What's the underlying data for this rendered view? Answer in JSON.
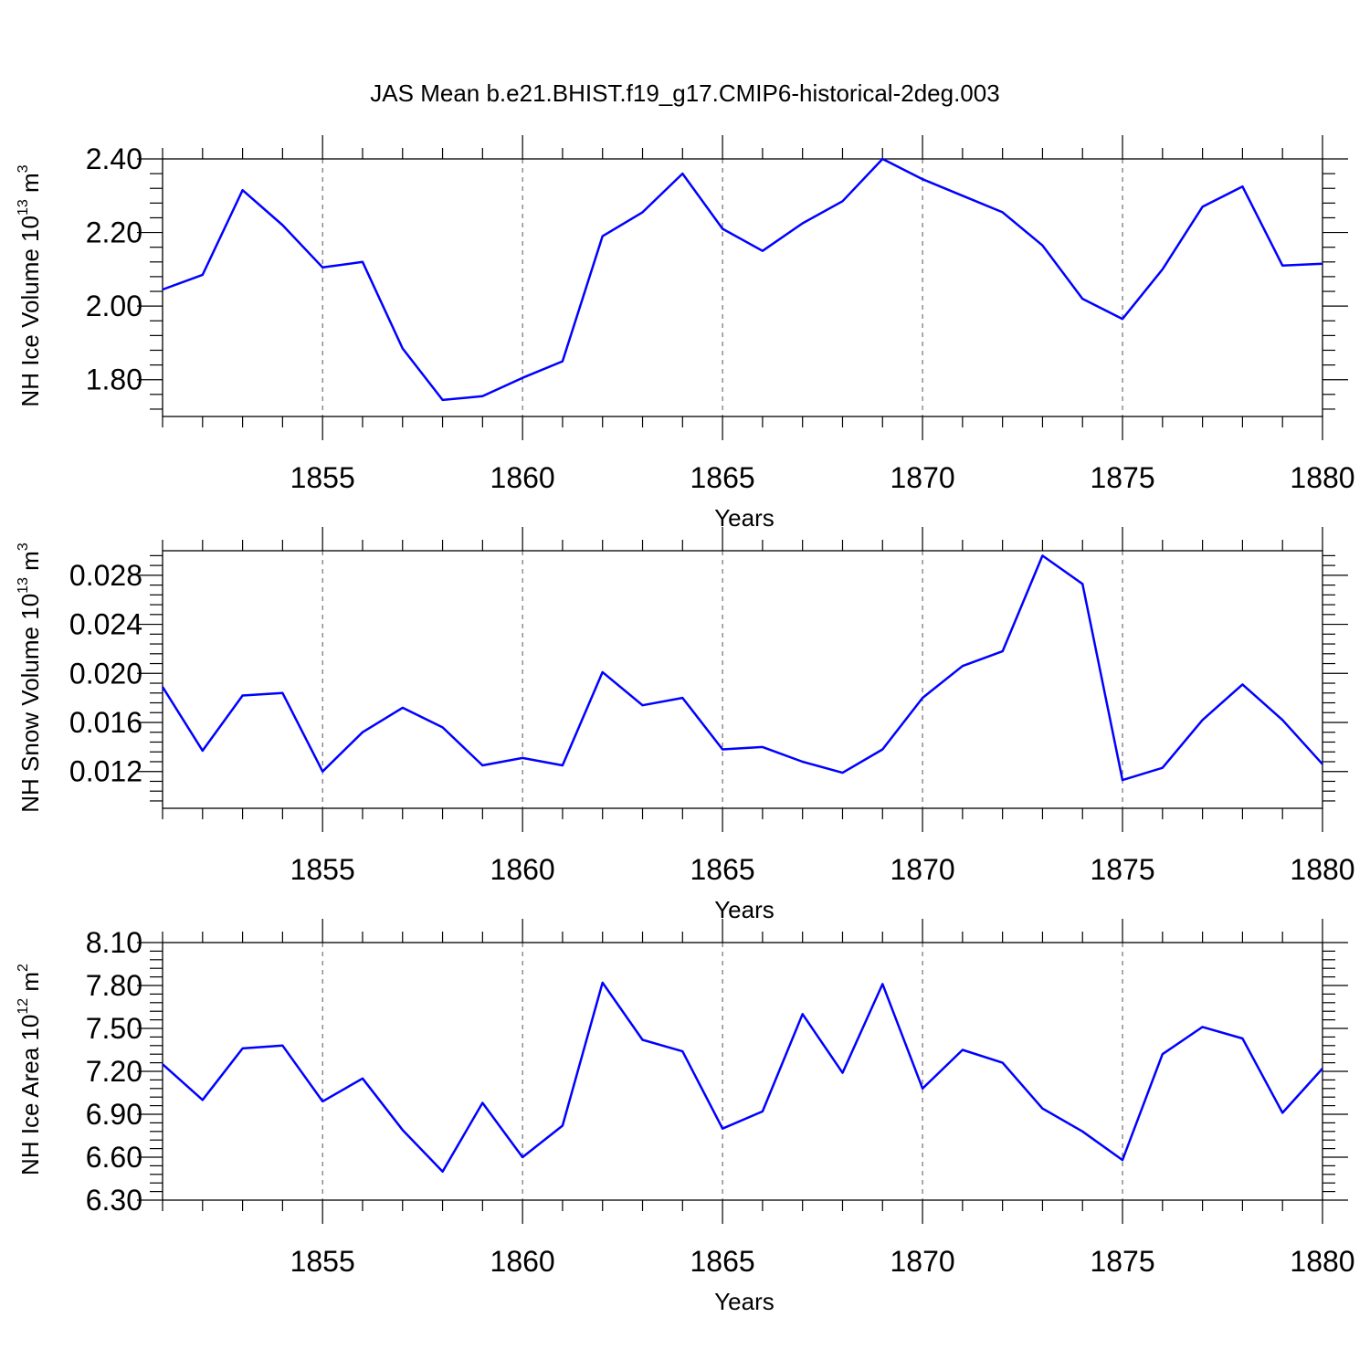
{
  "figure": {
    "title": "JAS Mean b.e21.BHIST.f19_g17.CMIP6-historical-2deg.003"
  },
  "colors": {
    "line": "#0000ff",
    "axis": "#000000",
    "grid": "#555555"
  },
  "chart_data": [
    {
      "type": "line",
      "name": "ice-volume",
      "ylabel": "NH Ice Volume 10",
      "ylabel_exp": "13",
      "ylabel_unit": " m",
      "ylabel_unit_exp": "3",
      "xlabel": "Years",
      "xlim": [
        1851,
        1880
      ],
      "ylim": [
        1.7,
        2.4
      ],
      "yticks": [
        1.8,
        2.0,
        2.2,
        2.4
      ],
      "ytick_labels": [
        "1.80",
        "2.00",
        "2.20",
        "2.40"
      ],
      "xticks": [
        1855,
        1860,
        1865,
        1870,
        1875,
        1880
      ],
      "xtick_labels": [
        "1855",
        "1860",
        "1865",
        "1870",
        "1875",
        "1880"
      ],
      "grid_x": true,
      "x": [
        1851,
        1852,
        1853,
        1854,
        1855,
        1856,
        1857,
        1858,
        1859,
        1860,
        1861,
        1862,
        1863,
        1864,
        1865,
        1866,
        1867,
        1868,
        1869,
        1870,
        1871,
        1872,
        1873,
        1874,
        1875,
        1876,
        1877,
        1878,
        1879,
        1880
      ],
      "y": [
        2.045,
        2.085,
        2.315,
        2.22,
        2.105,
        2.12,
        1.885,
        1.745,
        1.755,
        1.805,
        1.85,
        2.19,
        2.255,
        2.36,
        2.21,
        2.15,
        2.225,
        2.285,
        2.4,
        2.345,
        2.3,
        2.255,
        2.165,
        2.02,
        1.965,
        2.1,
        2.27,
        2.325,
        2.11,
        2.115
      ]
    },
    {
      "type": "line",
      "name": "snow-volume",
      "ylabel": "NH Snow Volume 10",
      "ylabel_exp": "13",
      "ylabel_unit": " m",
      "ylabel_unit_exp": "3",
      "xlabel": "Years",
      "xlim": [
        1851,
        1880
      ],
      "ylim": [
        0.009,
        0.03
      ],
      "yticks": [
        0.012,
        0.016,
        0.02,
        0.024,
        0.028
      ],
      "ytick_labels": [
        "0.012",
        "0.016",
        "0.020",
        "0.024",
        "0.028"
      ],
      "xticks": [
        1855,
        1860,
        1865,
        1870,
        1875,
        1880
      ],
      "xtick_labels": [
        "1855",
        "1860",
        "1865",
        "1870",
        "1875",
        "1880"
      ],
      "grid_x": true,
      "x": [
        1851,
        1852,
        1853,
        1854,
        1855,
        1856,
        1857,
        1858,
        1859,
        1860,
        1861,
        1862,
        1863,
        1864,
        1865,
        1866,
        1867,
        1868,
        1869,
        1870,
        1871,
        1872,
        1873,
        1874,
        1875,
        1876,
        1877,
        1878,
        1879,
        1880
      ],
      "y": [
        0.0189,
        0.0137,
        0.0182,
        0.0184,
        0.012,
        0.0152,
        0.0172,
        0.0156,
        0.0125,
        0.0131,
        0.0125,
        0.0201,
        0.0174,
        0.018,
        0.0138,
        0.014,
        0.0128,
        0.0119,
        0.0138,
        0.018,
        0.0206,
        0.0218,
        0.0296,
        0.0273,
        0.0113,
        0.0123,
        0.0162,
        0.0191,
        0.0162,
        0.0126
      ]
    },
    {
      "type": "line",
      "name": "ice-area",
      "ylabel": "NH Ice Area 10",
      "ylabel_exp": "12",
      "ylabel_unit": " m",
      "ylabel_unit_exp": "2",
      "xlabel": "Years",
      "xlim": [
        1851,
        1880
      ],
      "ylim": [
        6.3,
        8.1
      ],
      "yticks": [
        6.3,
        6.6,
        6.9,
        7.2,
        7.5,
        7.8,
        8.1
      ],
      "ytick_labels": [
        "6.30",
        "6.60",
        "6.90",
        "7.20",
        "7.50",
        "7.80",
        "8.10"
      ],
      "xticks": [
        1855,
        1860,
        1865,
        1870,
        1875,
        1880
      ],
      "xtick_labels": [
        "1855",
        "1860",
        "1865",
        "1870",
        "1875",
        "1880"
      ],
      "grid_x": true,
      "x": [
        1851,
        1852,
        1853,
        1854,
        1855,
        1856,
        1857,
        1858,
        1859,
        1860,
        1861,
        1862,
        1863,
        1864,
        1865,
        1866,
        1867,
        1868,
        1869,
        1870,
        1871,
        1872,
        1873,
        1874,
        1875,
        1876,
        1877,
        1878,
        1879,
        1880
      ],
      "y": [
        7.25,
        7.0,
        7.36,
        7.38,
        6.99,
        7.15,
        6.79,
        6.5,
        6.98,
        6.6,
        6.82,
        7.82,
        7.42,
        7.34,
        6.8,
        6.92,
        7.6,
        7.19,
        7.81,
        7.08,
        7.35,
        7.26,
        6.94,
        6.78,
        6.58,
        7.32,
        7.51,
        7.43,
        6.91,
        7.22
      ]
    }
  ]
}
